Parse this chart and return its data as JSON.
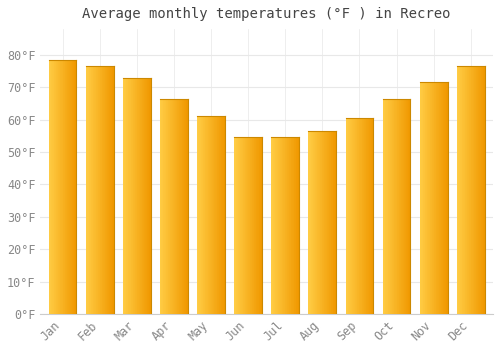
{
  "title": "Average monthly temperatures (°F ) in Recreo",
  "months": [
    "Jan",
    "Feb",
    "Mar",
    "Apr",
    "May",
    "Jun",
    "Jul",
    "Aug",
    "Sep",
    "Oct",
    "Nov",
    "Dec"
  ],
  "values": [
    78.5,
    76.5,
    73.0,
    66.5,
    61.0,
    54.5,
    54.5,
    56.5,
    60.5,
    66.5,
    71.5,
    76.5
  ],
  "bar_color_left": "#FFD966",
  "bar_color_right": "#F5A800",
  "bar_edge_color": "#CC8800",
  "background_color": "#FFFFFF",
  "grid_color": "#E8E8E8",
  "text_color": "#888888",
  "title_color": "#444444",
  "ylim": [
    0,
    88
  ],
  "yticks": [
    0,
    10,
    20,
    30,
    40,
    50,
    60,
    70,
    80
  ],
  "title_fontsize": 10,
  "tick_fontsize": 8.5,
  "bar_width": 0.75
}
